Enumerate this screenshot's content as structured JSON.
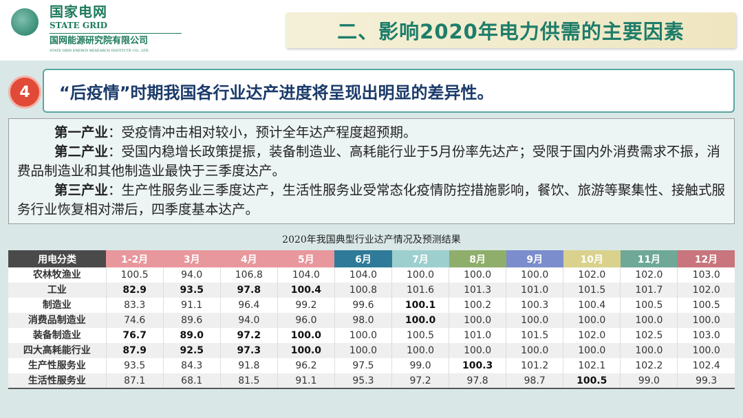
{
  "logo": {
    "cn": "国家电网",
    "en": "STATE GRID",
    "institute": "国网能源研究院有限公司",
    "institute_en": "STATE GRID ENERGY RESEARCH INSTITUTE CO., LTD."
  },
  "title": "二、影响2020年电力供需的主要因素",
  "section_number": "4",
  "subtitle": "“后疫情”时期我国各行业达产进度将呈现出明显的差异性。",
  "paragraphs": [
    {
      "head": "第一产业",
      "body": "：受疫情冲击相对较小，预计全年达产程度超预期。"
    },
    {
      "head": "第二产业",
      "body": "：受国内稳增长政策提振，装备制造业、高耗能行业于5月份率先达产；受限于国内外消费需求不振，消费品制造业和其他制造业最快于三季度达产。"
    },
    {
      "head": "第三产业",
      "body": "：生产性服务业三季度达产，生活性服务业受常态化疫情防控措施影响，餐饮、旅游等聚集性、接触式服务行业恢复相对滞后，四季度基本达产。"
    }
  ],
  "table": {
    "caption": "2020年我国典型行业达产情况及预测结果",
    "headers": [
      "用电分类",
      "1-2月",
      "3月",
      "4月",
      "5月",
      "6月",
      "7月",
      "8月",
      "9月",
      "10月",
      "11月",
      "12月"
    ],
    "header_colors": [
      "#4a4a4a",
      "#e8979c",
      "#e8979c",
      "#e8979c",
      "#e8979c",
      "#2e7a98",
      "#9dcfce",
      "#8fae6b",
      "#7b8dcc",
      "#d9d18c",
      "#6fa897",
      "#c8757d"
    ],
    "rows": [
      {
        "label": "农林牧渔业",
        "values": [
          "100.5",
          "94.0",
          "106.8",
          "104.0",
          "104.0",
          "100.0",
          "100.0",
          "100.0",
          "102.0",
          "102.0",
          "103.0"
        ],
        "bold": []
      },
      {
        "label": "工业",
        "values": [
          "82.9",
          "93.5",
          "97.8",
          "100.4",
          "100.8",
          "101.6",
          "101.3",
          "101.0",
          "101.5",
          "101.7",
          "102.0"
        ],
        "bold": [
          0,
          1,
          2,
          3
        ]
      },
      {
        "label": "制造业",
        "values": [
          "83.3",
          "91.1",
          "96.4",
          "99.2",
          "99.6",
          "100.1",
          "100.2",
          "100.3",
          "100.4",
          "100.5",
          "100.5"
        ],
        "bold": [
          5
        ]
      },
      {
        "label": "消费品制造业",
        "values": [
          "74.6",
          "89.6",
          "94.0",
          "96.0",
          "98.0",
          "100.0",
          "100.0",
          "100.0",
          "100.0",
          "100.0",
          "100.0"
        ],
        "bold": [
          5
        ]
      },
      {
        "label": "装备制造业",
        "values": [
          "76.7",
          "89.0",
          "97.2",
          "100.0",
          "100.0",
          "100.5",
          "101.0",
          "101.5",
          "102.0",
          "102.5",
          "103.0"
        ],
        "bold": [
          0,
          1,
          2,
          3
        ]
      },
      {
        "label": "四大高耗能行业",
        "values": [
          "87.9",
          "92.5",
          "97.3",
          "100.0",
          "100.0",
          "100.0",
          "100.0",
          "100.0",
          "100.0",
          "100.0",
          "100.0"
        ],
        "bold": [
          0,
          1,
          2,
          3
        ]
      },
      {
        "label": "生产性服务业",
        "values": [
          "93.5",
          "84.3",
          "91.8",
          "96.2",
          "97.5",
          "99.0",
          "100.3",
          "101.2",
          "102.1",
          "102.2",
          "102.4"
        ],
        "bold": [
          6
        ]
      },
      {
        "label": "生活性服务业",
        "values": [
          "87.1",
          "68.1",
          "81.5",
          "91.1",
          "95.3",
          "97.2",
          "97.8",
          "98.7",
          "100.5",
          "99.0",
          "99.3"
        ],
        "bold": [
          8
        ]
      }
    ]
  }
}
